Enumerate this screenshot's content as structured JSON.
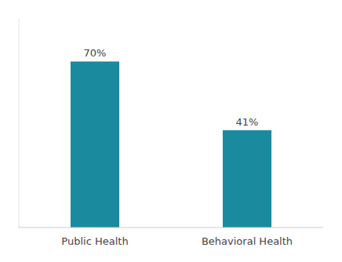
{
  "chart_data": {
    "type": "bar",
    "categories": [
      "Public Health",
      "Behavioral Health"
    ],
    "values": [
      70,
      41
    ],
    "value_labels": [
      "70%",
      "41%"
    ],
    "color": "#1a8a9e",
    "ylim": [
      0,
      88
    ],
    "grid": false,
    "data_labels": true,
    "tick_labels": "x"
  }
}
